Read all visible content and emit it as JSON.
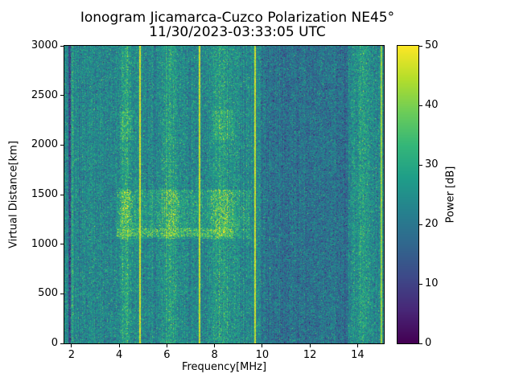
{
  "chart_data": {
    "type": "heatmap",
    "title": "Ionogram Jicamarca-Cuzco Polarization NE45°",
    "subtitle": "11/30/2023-03:33:05 UTC",
    "xlabel": "Frequency[MHz]",
    "ylabel": "Virtual Distance[km]",
    "xlim": [
      1.7,
      15.1
    ],
    "ylim": [
      0,
      3000
    ],
    "xticks": [
      2,
      4,
      6,
      8,
      10,
      12,
      14
    ],
    "yticks": [
      0,
      500,
      1000,
      1500,
      2000,
      2500,
      3000
    ],
    "colorbar": {
      "label": "Power [dB]",
      "min": 0,
      "max": 50,
      "ticks": [
        0,
        10,
        20,
        30,
        40,
        50
      ],
      "colormap": "viridis"
    },
    "background_noise": {
      "mean_db": 23,
      "std_db": 5
    },
    "quiet_band": {
      "freq_range": [
        9.95,
        13.6
      ],
      "power_offset_db": -5
    },
    "dark_columns": [
      {
        "freq": 1.92,
        "width_mhz": 0.1,
        "power_drop_db": 12
      }
    ],
    "interference_lines": [
      {
        "freq": 4.87,
        "power_db": 47,
        "width_mhz": 0.08
      },
      {
        "freq": 7.38,
        "power_db": 46,
        "width_mhz": 0.08
      },
      {
        "freq": 9.7,
        "power_db": 46,
        "width_mhz": 0.08
      },
      {
        "freq": 15.0,
        "power_db": 42,
        "width_mhz": 0.08
      }
    ],
    "noisy_bands": [
      {
        "center_mhz": 2.05,
        "sigma_mhz": 0.08,
        "boost_db": 8
      },
      {
        "center_mhz": 4.3,
        "sigma_mhz": 0.2,
        "boost_db": 13
      },
      {
        "center_mhz": 6.2,
        "sigma_mhz": 0.25,
        "boost_db": 12
      },
      {
        "center_mhz": 8.3,
        "sigma_mhz": 0.28,
        "boost_db": 13
      },
      {
        "center_mhz": 14.2,
        "sigma_mhz": 0.25,
        "boost_db": 10
      }
    ],
    "echo_regions": [
      {
        "freq_range": [
          3.9,
          9.5
        ],
        "range_km": [
          1050,
          1550
        ],
        "boost_db": 11
      },
      {
        "freq_range": [
          7.9,
          8.8
        ],
        "range_km": [
          2050,
          2350
        ],
        "boost_db": 6
      },
      {
        "freq_range": [
          4.0,
          4.6
        ],
        "range_km": [
          2050,
          2350
        ],
        "boost_db": 5
      }
    ],
    "echo_line": {
      "freq_range": [
        3.9,
        8.8
      ],
      "range_km": [
        1080,
        1160
      ],
      "power_db": 36
    }
  }
}
